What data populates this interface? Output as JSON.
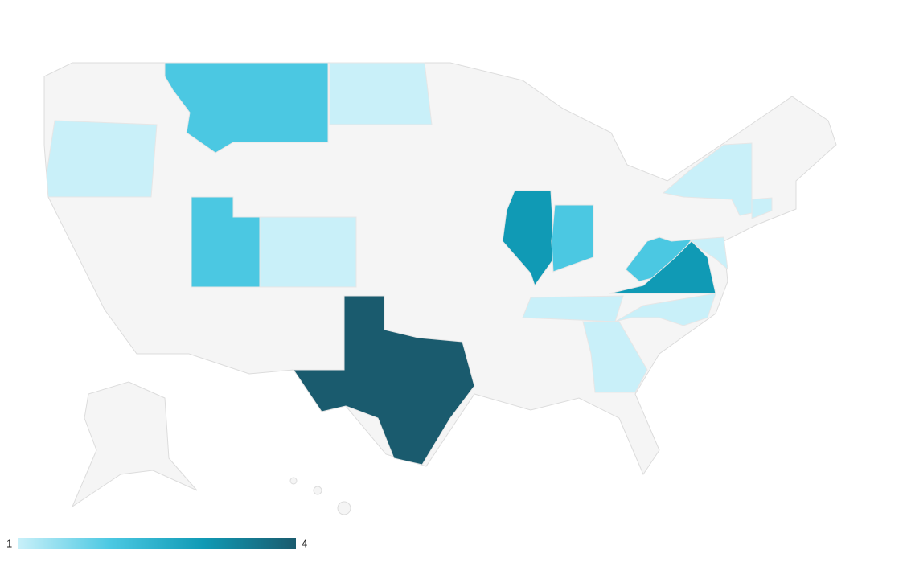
{
  "chart_data": {
    "type": "choropleth",
    "values": [
      1,
      2,
      1,
      2,
      1,
      4,
      3,
      2,
      2,
      3,
      1,
      1,
      1,
      1,
      1,
      1
    ],
    "legend_range": [
      1,
      4
    ],
    "colors": [
      "#c9f0f9",
      "#4bc8e2",
      "#109ab5",
      "#1a5b6e"
    ]
  }
}
